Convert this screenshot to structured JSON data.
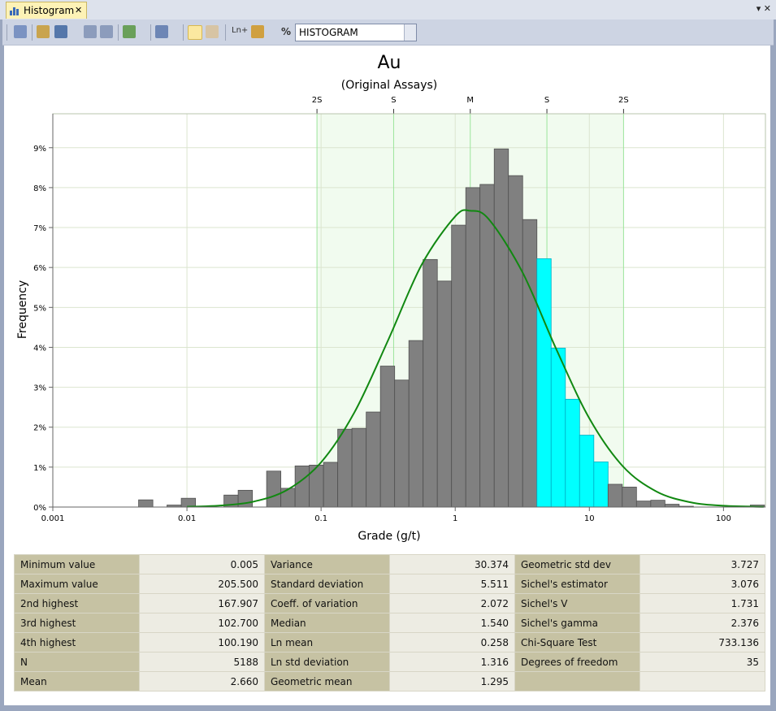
{
  "tab": {
    "title": "Histogram"
  },
  "toolbar": {
    "texts": [
      "Ln+",
      "%"
    ],
    "dropdown": "HISTOGRAM"
  },
  "chart_data": {
    "type": "histogram",
    "title": "Au",
    "subtitle": "(Original Assays)",
    "xlabel": "Grade (g/t)",
    "ylabel": "Frequency",
    "log_x": true,
    "grid": true,
    "band_color": "#f1fbef",
    "stat_line_color": "#9be59b",
    "bins": [
      0.00436,
      0.00557,
      0.0071,
      0.00907,
      0.01158,
      0.01478,
      0.01887,
      0.02409,
      0.03075,
      0.03926,
      0.05012,
      0.06399,
      0.08169,
      0.1043,
      0.1331,
      0.1699,
      0.217,
      0.277,
      0.3536,
      0.4514,
      0.5763,
      0.7357,
      0.9391,
      1.199,
      1.53,
      1.954,
      2.494,
      3.184,
      4.065,
      5.19,
      6.626,
      8.458,
      10.8,
      13.79,
      17.6,
      22.47,
      28.69,
      36.62,
      46.75,
      59.69,
      76.2,
      97.25,
      124.2,
      158.5,
      202.3
    ],
    "values": [
      0.18,
      0,
      0.05,
      0.22,
      0,
      0,
      0.3,
      0.42,
      0,
      0.9,
      0.47,
      1.03,
      1.05,
      1.12,
      1.95,
      1.97,
      2.38,
      3.53,
      3.18,
      4.17,
      6.2,
      5.66,
      7.06,
      8.0,
      8.08,
      8.97,
      8.3,
      7.2,
      6.22,
      3.98,
      2.7,
      1.8,
      1.13,
      0.57,
      0.5,
      0.15,
      0.17,
      0.07,
      0.02,
      0,
      0,
      0,
      0,
      0.05
    ],
    "colors": [
      "#808080",
      "#808080",
      "#808080",
      "#808080",
      "#808080",
      "#808080",
      "#808080",
      "#808080",
      "#808080",
      "#808080",
      "#808080",
      "#808080",
      "#808080",
      "#808080",
      "#808080",
      "#808080",
      "#808080",
      "#808080",
      "#808080",
      "#808080",
      "#808080",
      "#808080",
      "#808080",
      "#808080",
      "#808080",
      "#808080",
      "#808080",
      "#808080",
      "#00ffff",
      "#00ffff",
      "#00ffff",
      "#00ffff",
      "#00ffff",
      "#808080",
      "#808080",
      "#808080",
      "#808080",
      "#808080",
      "#808080",
      "#808080",
      "#808080",
      "#808080",
      "#808080",
      "#808080"
    ],
    "curve": {
      "color": "#118811",
      "x": [
        0.01,
        0.01778,
        0.03162,
        0.05623,
        0.1,
        0.1778,
        0.3162,
        0.5623,
        1,
        1.294,
        1.778,
        3.162,
        5.623,
        10,
        17.78,
        31.62,
        56.23,
        100,
        199.5
      ],
      "values": [
        0.008,
        0.037,
        0.139,
        0.434,
        1.12,
        2.38,
        4.18,
        6.07,
        7.28,
        7.42,
        7.21,
        5.89,
        3.98,
        2.22,
        1.02,
        0.389,
        0.122,
        0.032,
        0.005
      ]
    },
    "xlim": [
      0.001,
      205.5
    ],
    "ylim": [
      0,
      9.85
    ],
    "xticks": [
      0.001,
      0.01,
      0.1,
      1,
      10,
      100
    ],
    "yticks": [
      {
        "value": 0,
        "label": "0%"
      },
      {
        "value": 1,
        "label": "1%"
      },
      {
        "value": 2,
        "label": "2%"
      },
      {
        "value": 3,
        "label": "3%"
      },
      {
        "value": 4,
        "label": "4%"
      },
      {
        "value": 5,
        "label": "5%"
      },
      {
        "value": 6,
        "label": "6%"
      },
      {
        "value": 7,
        "label": "7%"
      },
      {
        "value": 8,
        "label": "8%"
      },
      {
        "value": 9,
        "label": "9%"
      }
    ],
    "top_ticks": [
      {
        "value": 0.0932,
        "label": "2S"
      },
      {
        "value": 0.3475,
        "label": "S"
      },
      {
        "value": 1.295,
        "label": "M"
      },
      {
        "value": 4.826,
        "label": "S"
      },
      {
        "value": 17.99,
        "label": "2S"
      }
    ]
  },
  "stats_table": {
    "rows": [
      [
        "Minimum value",
        "0.005",
        "Variance",
        "30.374",
        "Geometric std dev",
        "3.727"
      ],
      [
        "Maximum value",
        "205.500",
        "Standard deviation",
        "5.511",
        "Sichel's estimator",
        "3.076"
      ],
      [
        "2nd highest",
        "167.907",
        "Coeff. of variation",
        "2.072",
        "Sichel's V",
        "1.731"
      ],
      [
        "3rd highest",
        "102.700",
        "Median",
        "1.540",
        "Sichel's gamma",
        "2.376"
      ],
      [
        "4th highest",
        "100.190",
        "Ln mean",
        "0.258",
        "Chi-Square Test",
        "733.136"
      ],
      [
        "N",
        "5188",
        "Ln std deviation",
        "1.316",
        "Degrees of freedom",
        "35"
      ],
      [
        "Mean",
        "2.660",
        "Geometric mean",
        "1.295"
      ]
    ]
  }
}
